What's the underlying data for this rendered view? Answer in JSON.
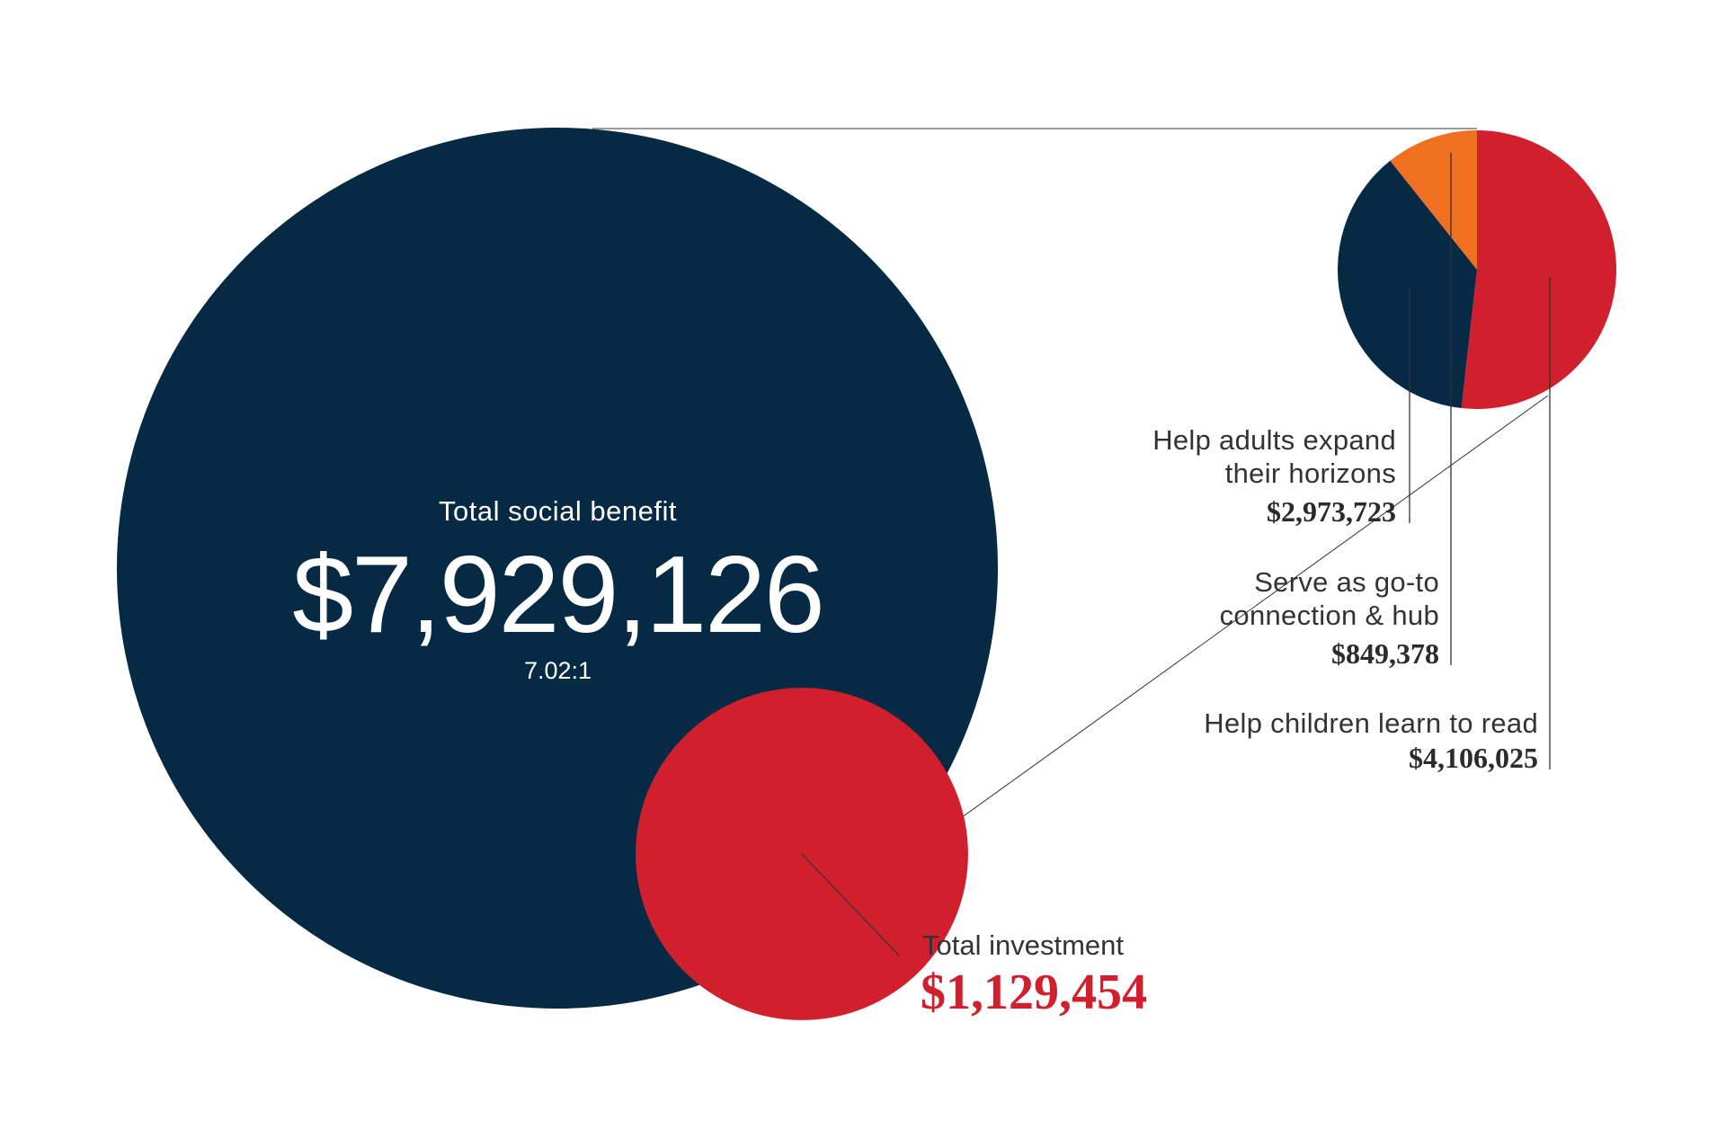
{
  "colors": {
    "navy": "#062944",
    "red": "#d0202e",
    "orange": "#f07021",
    "line": "#333333"
  },
  "chart_data": [
    {
      "type": "bubble",
      "name": "",
      "items": [
        {
          "label": "Total social benefit",
          "value": 7929126,
          "display": "$7,929,126",
          "color": "#062944"
        },
        {
          "label": "Total investment",
          "value": 1129454,
          "display": "$1,129,454",
          "color": "#d0202e"
        }
      ],
      "ratio": "7.02:1"
    },
    {
      "type": "pie",
      "total": 7929126,
      "slices": [
        {
          "label": "Help children learn to read",
          "value": 4106025,
          "display": "$4,106,025",
          "color": "#d0202e"
        },
        {
          "label": "Help adults  expand their horizons",
          "value": 2973723,
          "display": "$2,973,723",
          "color": "#062944"
        },
        {
          "label": "Serve as go-to connection & hub",
          "value": 849378,
          "display": "$849,378",
          "color": "#f07021"
        }
      ]
    }
  ],
  "labels": {
    "benefit_title": "Total social benefit",
    "benefit_value": "$7,929,126",
    "ratio": "7.02:1",
    "investment_title": "Total investment",
    "investment_value": "$1,129,454",
    "adults_line1": "Help adults  expand",
    "adults_line2": "their horizons",
    "adults_value": "$2,973,723",
    "hub_line1": "Serve as go-to",
    "hub_line2": "connection & hub",
    "hub_value": "$849,378",
    "children_line1": "Help children learn to read",
    "children_value": "$4,106,025"
  }
}
